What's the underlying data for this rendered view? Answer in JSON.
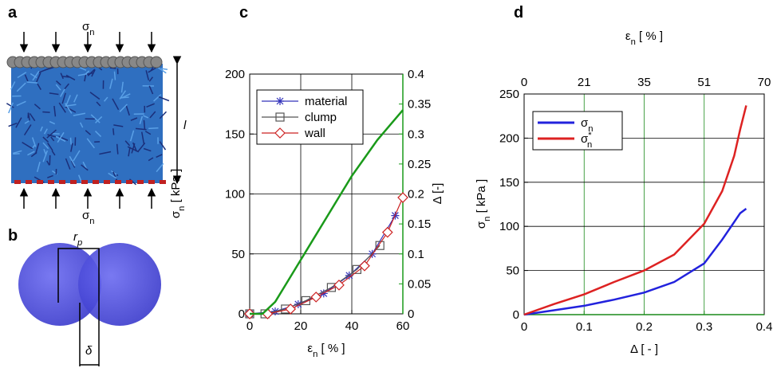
{
  "panel_a": {
    "letter": "a",
    "top_label": {
      "main": "σ",
      "sub": "n"
    },
    "bottom_label": {
      "main": "σ",
      "sub": "n"
    },
    "length_label": "l"
  },
  "panel_b": {
    "letter": "b",
    "radius_label": {
      "main": "r",
      "sub": "p"
    },
    "overlap_label": "δ"
  },
  "chart_data": [
    {
      "type": "line",
      "letter": "c",
      "xlabel": {
        "main": "ε",
        "sub": "n",
        "after": " [ % ]"
      },
      "ylabel": {
        "main": "σ",
        "sub": "n",
        "after": " [ kPa ]"
      },
      "y2label": {
        "main": "Δ [-]"
      },
      "xlim": [
        0,
        60
      ],
      "xticks": [
        0,
        20,
        40,
        60
      ],
      "ylim": [
        0,
        200
      ],
      "yticks": [
        0,
        50,
        100,
        150,
        200
      ],
      "y2lim": [
        0,
        0.4
      ],
      "y2ticks": [
        0,
        0.05,
        0.1,
        0.15,
        0.2,
        0.25,
        0.3,
        0.35,
        0.4
      ],
      "y2color": "#1a9a1a",
      "grid": true,
      "legend": "upper left",
      "series": [
        {
          "name": {
            "main": "material"
          },
          "color": "#3333bb",
          "marker": "asterisk",
          "x": [
            0,
            10,
            19,
            29,
            39,
            48,
            57
          ],
          "values": [
            0,
            2,
            8,
            17,
            32,
            50,
            82
          ]
        },
        {
          "name": {
            "main": "clump"
          },
          "color": "#555555",
          "marker": "square",
          "x": [
            0,
            6,
            14,
            22,
            32,
            42,
            51
          ],
          "values": [
            0,
            0,
            4,
            11,
            22,
            37,
            57
          ]
        },
        {
          "name": {
            "main": "wall"
          },
          "color": "#cc2222",
          "marker": "diamond",
          "x": [
            0,
            7,
            16,
            26,
            35,
            45,
            54,
            60
          ],
          "values": [
            0,
            0,
            4,
            14,
            24,
            40,
            68,
            97
          ]
        },
        {
          "color": "#1a9a1a",
          "axis": "y2",
          "x": [
            0,
            5,
            10,
            15,
            20,
            25,
            30,
            35,
            40,
            45,
            50,
            55,
            60
          ],
          "values": [
            0,
            0,
            0.02,
            0.055,
            0.09,
            0.125,
            0.16,
            0.195,
            0.23,
            0.26,
            0.29,
            0.315,
            0.34
          ]
        }
      ]
    },
    {
      "type": "line",
      "letter": "d",
      "xlabel": {
        "main": "Δ [ - ]"
      },
      "x2label": {
        "main": "ε",
        "sub": "n",
        "after": " [ % ]"
      },
      "ylabel": {
        "main": "σ",
        "sub": "n",
        "after": " [ kPa ]"
      },
      "xlim": [
        0,
        0.4
      ],
      "xticks": [
        0,
        0.1,
        0.2,
        0.3,
        0.4
      ],
      "x2ticks": [
        0,
        21,
        35,
        51,
        70
      ],
      "ylim": [
        0,
        250
      ],
      "yticks": [
        0,
        50,
        100,
        150,
        200,
        250
      ],
      "xcolor": "#1a8a1a",
      "grid": true,
      "legend": "upper left",
      "series": [
        {
          "name": {
            "main": "σ",
            "sub": "n"
          },
          "color": "#2222dd",
          "x": [
            0,
            0.05,
            0.1,
            0.15,
            0.2,
            0.25,
            0.3,
            0.33,
            0.35,
            0.36,
            0.37
          ],
          "values": [
            0,
            5,
            10,
            17,
            25,
            37,
            58,
            85,
            105,
            115,
            120
          ]
        },
        {
          "name": {
            "main": "σ",
            "sup": "*",
            "sub": "n"
          },
          "color": "#dd2222",
          "x": [
            0,
            0.05,
            0.1,
            0.15,
            0.2,
            0.25,
            0.3,
            0.33,
            0.35,
            0.36,
            0.37
          ],
          "values": [
            0,
            12,
            23,
            37,
            50,
            68,
            103,
            140,
            180,
            210,
            237
          ]
        }
      ]
    }
  ]
}
